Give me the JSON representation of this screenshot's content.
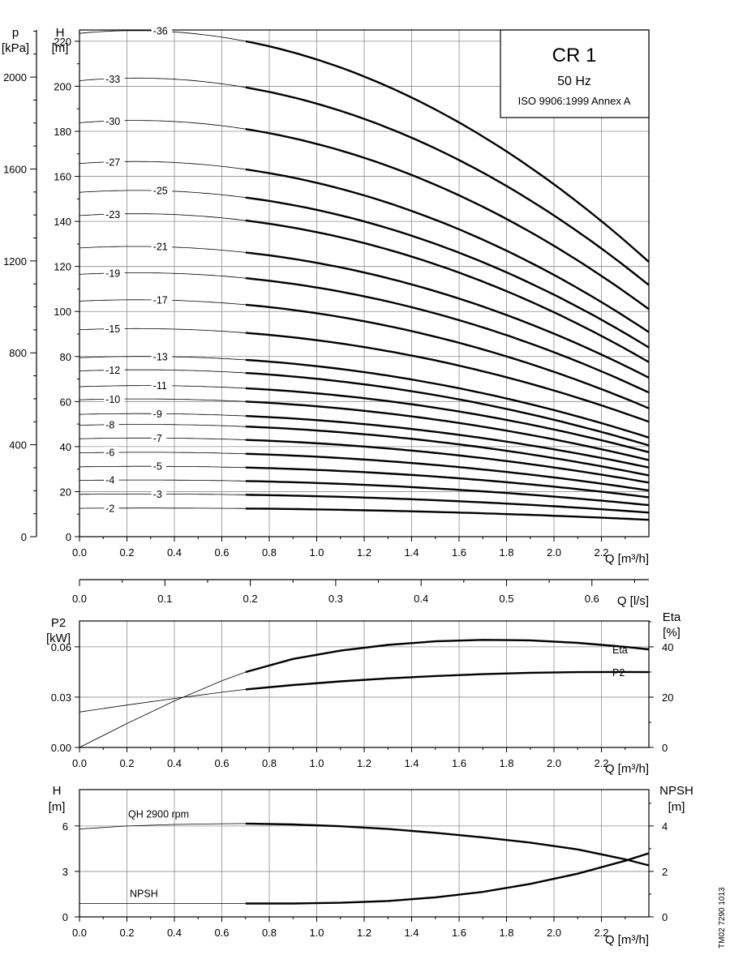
{
  "chart_data": [
    {
      "type": "line",
      "name": "head",
      "title": "CR 1",
      "subtitle": "50 Hz",
      "note": "ISO 9906:1999 Annex A",
      "xlabel": "Q [m³/h]",
      "x2label": "Q [l/s]",
      "ylabel_top": "H",
      "ylabel_unit": "[m]",
      "y2label_top": "p",
      "y2label_unit": "[kPa]",
      "xlim": [
        0,
        2.4
      ],
      "ylim": [
        0,
        225
      ],
      "x2lim": [
        0,
        0.6667
      ],
      "y2lim": [
        0,
        2205
      ],
      "x_ticks": [
        "0.0",
        "0.2",
        "0.4",
        "0.6",
        "0.8",
        "1.0",
        "1.2",
        "1.4",
        "1.6",
        "1.8",
        "2.0",
        "2.2"
      ],
      "y_ticks": [
        "0",
        "20",
        "40",
        "60",
        "80",
        "100",
        "120",
        "140",
        "160",
        "180",
        "200",
        "220"
      ],
      "x2_ticks": [
        "0.0",
        "0.1",
        "0.2",
        "0.3",
        "0.4",
        "0.5",
        "0.6"
      ],
      "y2_ticks": [
        "0",
        "400",
        "800",
        "1200",
        "1600",
        "2000"
      ],
      "op_start": 0.7,
      "x_end": 2.4,
      "series": [
        {
          "name": "-2",
          "shutoff": 12.6,
          "at_start": 12.5,
          "at_end": 7.5
        },
        {
          "name": "-3",
          "shutoff": 18.8,
          "at_start": 18.6,
          "at_end": 10.7
        },
        {
          "name": "-4",
          "shutoff": 25.0,
          "at_start": 24.7,
          "at_end": 14.0
        },
        {
          "name": "-5",
          "shutoff": 31.0,
          "at_start": 30.7,
          "at_end": 17.5
        },
        {
          "name": "-6",
          "shutoff": 37.2,
          "at_start": 36.8,
          "at_end": 20.5
        },
        {
          "name": "-7",
          "shutoff": 43.5,
          "at_start": 43.0,
          "at_end": 24.0
        },
        {
          "name": "-8",
          "shutoff": 49.5,
          "at_start": 48.9,
          "at_end": 27.2
        },
        {
          "name": "-9",
          "shutoff": 54.3,
          "at_start": 53.6,
          "at_end": 30.7
        },
        {
          "name": "-10",
          "shutoff": 60.8,
          "at_start": 60.0,
          "at_end": 34.0
        },
        {
          "name": "-11",
          "shutoff": 66.6,
          "at_start": 65.9,
          "at_end": 37.5
        },
        {
          "name": "-12",
          "shutoff": 73.6,
          "at_start": 72.7,
          "at_end": 40.5
        },
        {
          "name": "-13",
          "shutoff": 79.5,
          "at_start": 78.5,
          "at_end": 44.0
        },
        {
          "name": "-15",
          "shutoff": 91.9,
          "at_start": 90.5,
          "at_end": 51.0
        },
        {
          "name": "-17",
          "shutoff": 104.6,
          "at_start": 103.0,
          "at_end": 57.0
        },
        {
          "name": "-19",
          "shutoff": 116.5,
          "at_start": 114.8,
          "at_end": 64.0
        },
        {
          "name": "-21",
          "shutoff": 128.2,
          "at_start": 126.2,
          "at_end": 70.6
        },
        {
          "name": "-23",
          "shutoff": 142.6,
          "at_start": 140.4,
          "at_end": 77.5
        },
        {
          "name": "-25",
          "shutoff": 152.9,
          "at_start": 150.6,
          "at_end": 84.0
        },
        {
          "name": "-27",
          "shutoff": 165.7,
          "at_start": 163.1,
          "at_end": 90.8
        },
        {
          "name": "-30",
          "shutoff": 183.8,
          "at_start": 181.0,
          "at_end": 101.0
        },
        {
          "name": "-33",
          "shutoff": 202.5,
          "at_start": 199.5,
          "at_end": 111.7
        },
        {
          "name": "-36",
          "shutoff": 223.5,
          "at_start": 220.0,
          "at_end": 122.0
        }
      ]
    },
    {
      "type": "line",
      "name": "power-efficiency",
      "ylabel_top": "P2",
      "ylabel_unit": "[kW]",
      "y2label_top": "Eta",
      "y2label_unit": "[%]",
      "xlabel": "Q [m³/h]",
      "xlim": [
        0,
        2.4
      ],
      "ylim": [
        0,
        0.0754
      ],
      "y2lim": [
        0,
        50.3
      ],
      "x_ticks": [
        "0.0",
        "0.2",
        "0.4",
        "0.6",
        "0.8",
        "1.0",
        "1.2",
        "1.4",
        "1.6",
        "1.8",
        "2.0",
        "2.2"
      ],
      "y_ticks": [
        "0.00",
        "0.03",
        "0.06"
      ],
      "y2_ticks": [
        "0",
        "20",
        "40"
      ],
      "series": [
        {
          "name": "Eta",
          "axis": "right",
          "x": [
            0,
            0.2,
            0.4,
            0.6,
            0.7,
            0.9,
            1.1,
            1.3,
            1.5,
            1.7,
            1.9,
            2.1,
            2.3,
            2.4
          ],
          "y": [
            0,
            9.5,
            18.5,
            26.5,
            30.0,
            35.2,
            38.5,
            40.8,
            42.2,
            42.8,
            42.6,
            41.6,
            40.0,
            39.0
          ]
        },
        {
          "name": "P2",
          "axis": "left",
          "x": [
            0,
            0.2,
            0.4,
            0.6,
            0.7,
            0.9,
            1.1,
            1.3,
            1.5,
            1.7,
            1.9,
            2.1,
            2.3,
            2.4
          ],
          "y": [
            0.0211,
            0.0253,
            0.0292,
            0.0329,
            0.0346,
            0.0372,
            0.0394,
            0.0412,
            0.0426,
            0.0437,
            0.0445,
            0.0449,
            0.045,
            0.0449
          ]
        }
      ]
    },
    {
      "type": "line",
      "name": "npsh",
      "ylabel_top": "H",
      "ylabel_unit": "[m]",
      "y2label_top": "NPSH",
      "y2label_unit": "[m]",
      "xlabel": "Q [m³/h]",
      "xlim": [
        0,
        2.4
      ],
      "ylim": [
        0,
        8.4
      ],
      "y2lim": [
        0,
        5.6
      ],
      "x_ticks": [
        "0.0",
        "0.2",
        "0.4",
        "0.6",
        "0.8",
        "1.0",
        "1.2",
        "1.4",
        "1.6",
        "1.8",
        "2.0",
        "2.2"
      ],
      "y_ticks": [
        "0",
        "3",
        "6"
      ],
      "y2_ticks": [
        "0",
        "2",
        "4"
      ],
      "series": [
        {
          "name": "QH 2900 rpm",
          "axis": "left",
          "x": [
            0,
            0.2,
            0.4,
            0.6,
            0.7,
            0.9,
            1.1,
            1.3,
            1.5,
            1.7,
            1.9,
            2.1,
            2.3,
            2.4
          ],
          "y": [
            5.8,
            6.0,
            6.1,
            6.15,
            6.16,
            6.1,
            5.98,
            5.8,
            5.55,
            5.25,
            4.9,
            4.45,
            3.8,
            3.4
          ]
        },
        {
          "name": "NPSH",
          "axis": "right",
          "x": [
            0,
            0.2,
            0.4,
            0.6,
            0.7,
            0.9,
            1.1,
            1.3,
            1.5,
            1.7,
            1.9,
            2.1,
            2.3,
            2.4
          ],
          "y": [
            0.59,
            0.59,
            0.59,
            0.59,
            0.59,
            0.59,
            0.62,
            0.7,
            0.86,
            1.1,
            1.45,
            1.9,
            2.47,
            2.8
          ]
        }
      ]
    }
  ],
  "doc_code": "TM02 7290 1013"
}
